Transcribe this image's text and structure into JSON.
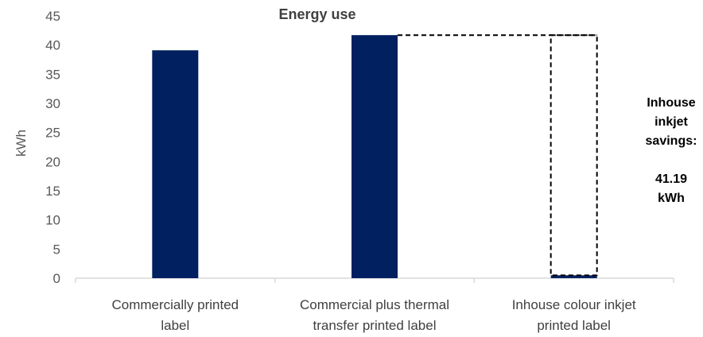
{
  "chart_data": {
    "type": "bar",
    "title": "Energy use",
    "ylabel": "kWh",
    "xlabel": "",
    "ylim": [
      0,
      45
    ],
    "yticks": [
      0,
      5,
      10,
      15,
      20,
      25,
      30,
      35,
      40,
      45
    ],
    "grid": false,
    "categories": [
      [
        "Commercially printed",
        "label"
      ],
      [
        "Commercial plus thermal",
        "transfer printed label"
      ],
      [
        "Inhouse colour inkjet",
        "printed label"
      ]
    ],
    "values": [
      39.1,
      41.7,
      0.5
    ],
    "bar_color": "#002060",
    "savings_box": {
      "category_index": 2,
      "from_category_index": 1,
      "top_value": 41.7,
      "bottom_value": 0.5,
      "style": "dashed"
    },
    "annotation": [
      "Inhouse",
      "inkjet",
      "savings:",
      "",
      "41.19",
      "kWh"
    ]
  }
}
